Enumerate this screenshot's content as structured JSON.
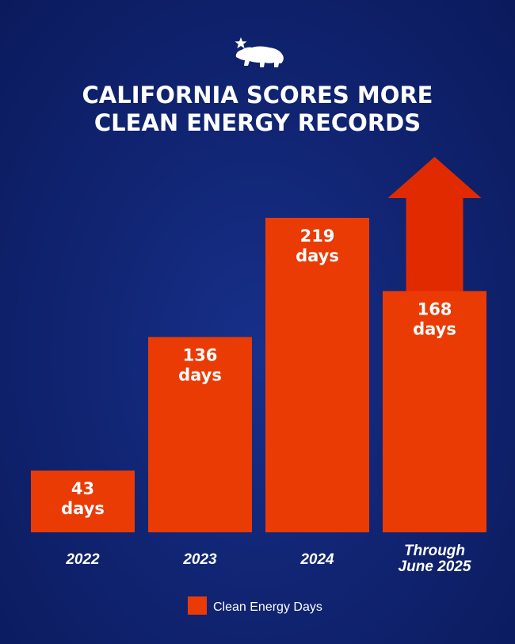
{
  "colors": {
    "background": "#112574",
    "bar": "#ea3b05",
    "arrow": "#e22a00",
    "text": "#ffffff"
  },
  "logo": {
    "icon": "california-bear-star-icon"
  },
  "chart_data": {
    "type": "bar",
    "title_lines": [
      "CALIFORNIA SCORES MORE",
      "CLEAN ENERGY RECORDS"
    ],
    "categories": [
      {
        "lines": [
          "2022"
        ]
      },
      {
        "lines": [
          "2023"
        ]
      },
      {
        "lines": [
          "2024"
        ]
      },
      {
        "lines": [
          "Through",
          "June 2025"
        ]
      }
    ],
    "series": [
      {
        "name": "Clean Energy Days",
        "values": [
          43,
          136,
          219,
          168
        ],
        "value_labels": [
          "43",
          "136",
          "219",
          "168"
        ]
      }
    ],
    "value_unit": "days",
    "ylim": [
      0,
      219
    ],
    "grid": false,
    "legend": {
      "position": "bottom-center"
    },
    "annotation": {
      "type": "upward-arrow",
      "category_index": 3
    }
  }
}
